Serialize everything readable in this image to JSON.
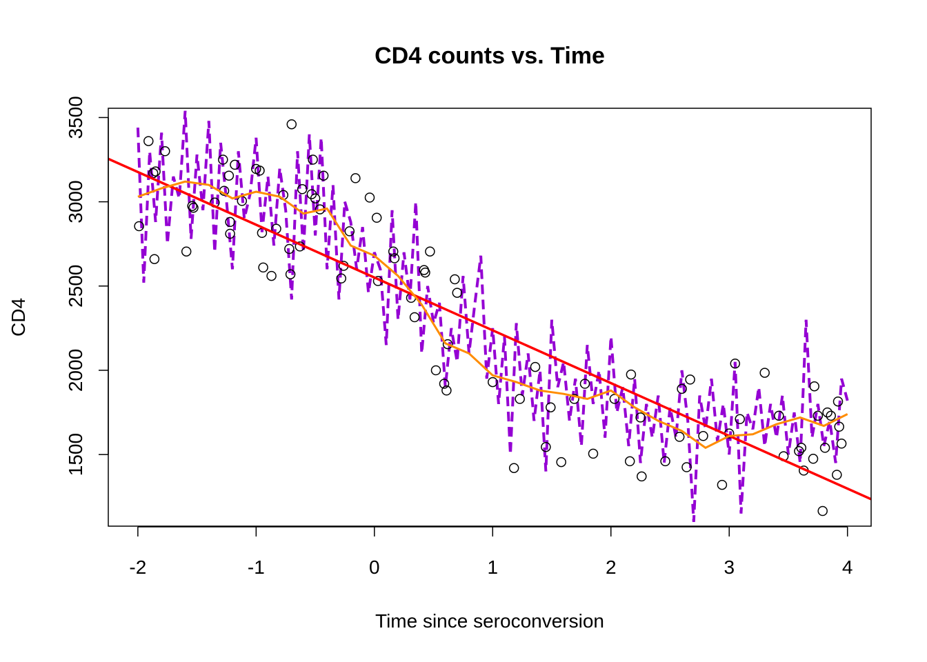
{
  "chart_data": {
    "type": "scatter",
    "title": "CD4 counts vs. Time",
    "xlabel": "Time since seroconversion",
    "ylabel": "CD4",
    "xlim": [
      -2.25,
      4.2
    ],
    "ylim": [
      1075,
      3555
    ],
    "x_ticks": [
      -2,
      -1,
      0,
      1,
      2,
      3,
      4
    ],
    "y_ticks": [
      1500,
      2000,
      2500,
      3000,
      3500
    ],
    "grid": false,
    "legend": "none",
    "colors": {
      "points": "#000000",
      "fit_line": "#ff0000",
      "smooth_line": "#ff8c00",
      "dashed_line": "#9400d3"
    },
    "points": {
      "x": [
        -1.99,
        -1.91,
        -1.87,
        -1.86,
        -1.85,
        -1.77,
        -1.59,
        -1.54,
        -1.53,
        -1.35,
        -1.28,
        -1.27,
        -1.23,
        -1.22,
        -1.22,
        -1.18,
        -1.12,
        -1.0,
        -0.97,
        -0.95,
        -0.94,
        -0.87,
        -0.83,
        -0.77,
        -0.72,
        -0.71,
        -0.7,
        -0.63,
        -0.61,
        -0.53,
        -0.52,
        -0.5,
        -0.46,
        -0.43,
        -0.28,
        -0.26,
        -0.21,
        -0.16,
        -0.04,
        0.02,
        0.03,
        0.16,
        0.17,
        0.31,
        0.34,
        0.42,
        0.43,
        0.47,
        0.52,
        0.59,
        0.61,
        0.62,
        0.68,
        0.7,
        1.0,
        1.18,
        1.23,
        1.36,
        1.45,
        1.49,
        1.58,
        1.69,
        1.78,
        1.85,
        2.03,
        2.16,
        2.17,
        2.25,
        2.26,
        2.46,
        2.58,
        2.6,
        2.64,
        2.67,
        2.78,
        2.94,
        3.0,
        3.05,
        3.09,
        3.3,
        3.42,
        3.46,
        3.59,
        3.61,
        3.63,
        3.71,
        3.72,
        3.75,
        3.79,
        3.81,
        3.83,
        3.86,
        3.91,
        3.92,
        3.93,
        3.95
      ],
      "y": [
        2855,
        3360,
        3170,
        2660,
        3180,
        3300,
        2705,
        2975,
        2965,
        2995,
        3250,
        3065,
        3155,
        2880,
        2810,
        3220,
        3005,
        3195,
        3185,
        2815,
        2610,
        2560,
        2840,
        3040,
        2720,
        2570,
        3460,
        2735,
        3075,
        3045,
        3250,
        3020,
        2955,
        3155,
        2545,
        2620,
        2825,
        3140,
        3025,
        2905,
        2530,
        2705,
        2665,
        2430,
        2315,
        2595,
        2580,
        2705,
        2000,
        1920,
        1880,
        2155,
        2540,
        2460,
        1930,
        1420,
        1830,
        2020,
        1545,
        1780,
        1455,
        1830,
        1920,
        1505,
        1830,
        1460,
        1975,
        1720,
        1370,
        1460,
        1605,
        1890,
        1425,
        1945,
        1610,
        1320,
        1625,
        2040,
        1710,
        1985,
        1730,
        1490,
        1520,
        1540,
        1405,
        1475,
        1905,
        1730,
        1165,
        1540,
        1750,
        1730,
        1380,
        1815,
        1665,
        1565
      ]
    },
    "fit_line": {
      "x": [
        -2.25,
        4.2
      ],
      "y": [
        3255,
        1235
      ]
    },
    "smooth_line": {
      "x": [
        -2.0,
        -1.8,
        -1.6,
        -1.4,
        -1.2,
        -1.0,
        -0.8,
        -0.6,
        -0.4,
        -0.2,
        0.0,
        0.2,
        0.4,
        0.6,
        0.8,
        1.0,
        1.2,
        1.4,
        1.6,
        1.8,
        2.0,
        2.2,
        2.4,
        2.6,
        2.8,
        3.0,
        3.2,
        3.4,
        3.6,
        3.8,
        4.0
      ],
      "y": [
        3030,
        3080,
        3120,
        3100,
        3020,
        3060,
        3030,
        2930,
        2960,
        2740,
        2680,
        2560,
        2390,
        2160,
        2100,
        1970,
        1930,
        1880,
        1860,
        1830,
        1880,
        1780,
        1700,
        1640,
        1540,
        1610,
        1620,
        1680,
        1720,
        1670,
        1740
      ]
    },
    "dashed_line": {
      "x": [
        -2.0,
        -1.95,
        -1.9,
        -1.85,
        -1.8,
        -1.75,
        -1.7,
        -1.65,
        -1.6,
        -1.55,
        -1.5,
        -1.45,
        -1.4,
        -1.35,
        -1.3,
        -1.25,
        -1.2,
        -1.15,
        -1.1,
        -1.05,
        -1.0,
        -0.95,
        -0.9,
        -0.85,
        -0.8,
        -0.75,
        -0.7,
        -0.65,
        -0.6,
        -0.55,
        -0.5,
        -0.45,
        -0.4,
        -0.35,
        -0.3,
        -0.25,
        -0.2,
        -0.15,
        -0.1,
        -0.05,
        0.0,
        0.05,
        0.1,
        0.15,
        0.2,
        0.25,
        0.3,
        0.35,
        0.4,
        0.45,
        0.5,
        0.55,
        0.6,
        0.65,
        0.7,
        0.75,
        0.8,
        0.85,
        0.9,
        0.95,
        1.0,
        1.05,
        1.1,
        1.15,
        1.2,
        1.25,
        1.3,
        1.35,
        1.4,
        1.45,
        1.5,
        1.55,
        1.6,
        1.65,
        1.7,
        1.75,
        1.8,
        1.85,
        1.9,
        1.95,
        2.0,
        2.05,
        2.1,
        2.15,
        2.2,
        2.25,
        2.3,
        2.35,
        2.4,
        2.45,
        2.5,
        2.55,
        2.6,
        2.65,
        2.7,
        2.75,
        2.8,
        2.85,
        2.9,
        2.95,
        3.0,
        3.05,
        3.1,
        3.15,
        3.2,
        3.25,
        3.3,
        3.35,
        3.4,
        3.45,
        3.5,
        3.55,
        3.6,
        3.65,
        3.7,
        3.75,
        3.8,
        3.85,
        3.9,
        3.95,
        4.0
      ],
      "y": [
        3440,
        2520,
        3300,
        2880,
        3410,
        2750,
        3150,
        3020,
        3540,
        2780,
        3280,
        2950,
        3480,
        2700,
        3350,
        3000,
        2600,
        3300,
        2900,
        3050,
        3380,
        2820,
        3150,
        2740,
        3200,
        2950,
        2420,
        3300,
        2700,
        3400,
        2800,
        3380,
        2600,
        3100,
        2420,
        3000,
        2880,
        2600,
        2850,
        2460,
        2700,
        2600,
        2150,
        2950,
        2300,
        2700,
        2420,
        3000,
        2100,
        2500,
        2280,
        2400,
        1900,
        2250,
        2050,
        2560,
        2100,
        2400,
        2680,
        1950,
        2250,
        1800,
        2200,
        1500,
        2280,
        1850,
        2100,
        1700,
        2000,
        1400,
        2300,
        1900,
        2050,
        1700,
        1950,
        1550,
        2150,
        1800,
        2000,
        1600,
        2200,
        1750,
        1900,
        1550,
        1950,
        1450,
        1800,
        1600,
        1850,
        1450,
        1780,
        1600,
        2000,
        1700,
        1100,
        1850,
        1650,
        1950,
        1580,
        1800,
        1500,
        2050,
        1150,
        1750,
        1650,
        1900,
        1550,
        1800,
        1600,
        1850,
        1500,
        1750,
        1450,
        2300,
        1600,
        1800,
        1550,
        1700,
        1450,
        1950,
        1820
      ]
    }
  }
}
